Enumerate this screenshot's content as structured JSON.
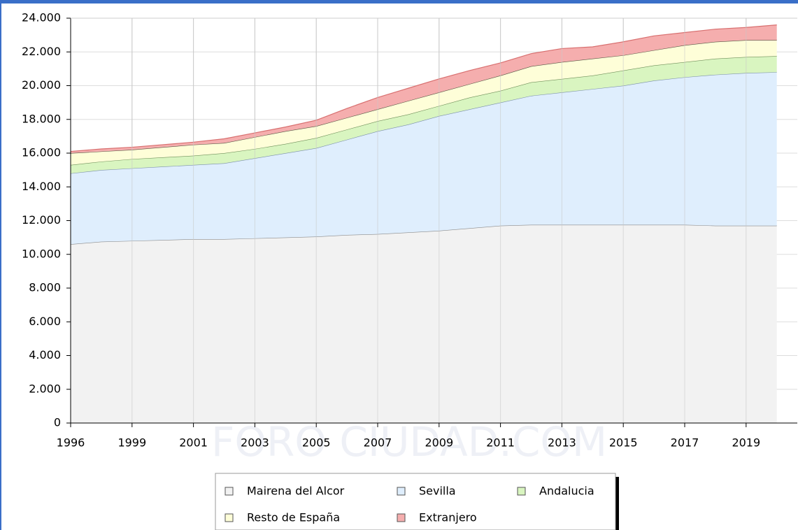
{
  "chart_data": {
    "type": "stacked_area",
    "watermark": "FORO CIUDAD.COM",
    "categories": [
      "1996",
      null,
      "1999",
      null,
      "2001",
      null,
      "2003",
      null,
      "2005",
      null,
      "2007",
      null,
      "2009",
      null,
      "2011",
      null,
      "2013",
      null,
      "2015",
      null,
      "2017",
      null,
      "2019",
      null
    ],
    "ylim": [
      0,
      24000
    ],
    "yticks": [
      0,
      {
        "value": 2000,
        "label": "2.000"
      },
      {
        "value": 4000,
        "label": "4.000"
      },
      {
        "value": 6000,
        "label": "6.000"
      },
      {
        "value": 8000,
        "label": "8.000"
      },
      {
        "value": 10000,
        "label": "10.000"
      },
      {
        "value": 12000,
        "label": "12.000"
      },
      {
        "value": 14000,
        "label": "14.000"
      },
      {
        "value": 16000,
        "label": "16.000"
      },
      {
        "value": 18000,
        "label": "18.000"
      },
      {
        "value": 20000,
        "label": "20.000"
      },
      {
        "value": 22000,
        "label": "22.000"
      },
      {
        "value": 24000,
        "label": "24.000"
      }
    ],
    "grid": true,
    "legend": "bottom",
    "series": [
      {
        "name": "Mairena del Alcor",
        "color": "#f2f2f2",
        "line": "#8a8a8a",
        "values": [
          10600,
          10750,
          10800,
          10850,
          10900,
          10900,
          10950,
          11000,
          11050,
          11150,
          11200,
          11300,
          11400,
          11550,
          11700,
          11750,
          11750,
          11750,
          11750,
          11750,
          11750,
          11700,
          11700,
          11700
        ]
      },
      {
        "name": "Sevilla",
        "color": "#dfeefd",
        "line": "#7a8fa8",
        "values": [
          4200,
          4250,
          4300,
          4350,
          4400,
          4500,
          4750,
          5000,
          5250,
          5650,
          6100,
          6400,
          6800,
          7050,
          7300,
          7650,
          7850,
          8050,
          8250,
          8550,
          8750,
          8950,
          9050,
          9100
        ]
      },
      {
        "name": "Andalucia",
        "color": "#d9f5c0",
        "line": "#6f8f5a",
        "values": [
          500,
          500,
          550,
          550,
          550,
          600,
          550,
          550,
          600,
          600,
          600,
          600,
          600,
          700,
          700,
          800,
          800,
          800,
          900,
          900,
          900,
          950,
          950,
          950
        ]
      },
      {
        "name": "Resto de España",
        "color": "#fefed8",
        "line": "#555544",
        "values": [
          700,
          600,
          550,
          600,
          650,
          600,
          700,
          750,
          700,
          700,
          700,
          800,
          800,
          800,
          900,
          950,
          1000,
          1000,
          900,
          900,
          1000,
          1000,
          1000,
          950
        ]
      },
      {
        "name": "Extranjero",
        "color": "#f5aeae",
        "line": "#d87070",
        "values": [
          100,
          150,
          150,
          150,
          150,
          250,
          250,
          250,
          350,
          550,
          700,
          750,
          800,
          800,
          750,
          750,
          800,
          700,
          800,
          850,
          750,
          750,
          750,
          900
        ]
      }
    ]
  }
}
